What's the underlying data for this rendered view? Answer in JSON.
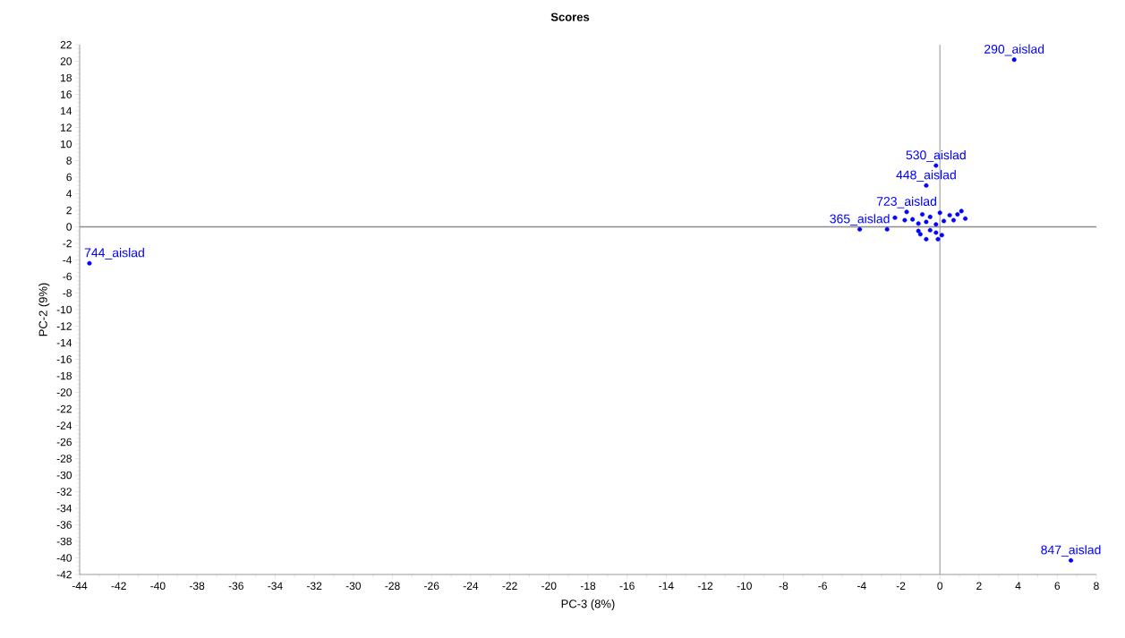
{
  "chart_data": {
    "type": "scatter",
    "title": "Scores",
    "xlabel": "PC-3 (8%)",
    "ylabel": "PC-2 (9%)",
    "x": [
      3.8,
      -0.2,
      -0.7,
      -43.5,
      6.7,
      -4.1,
      -2.7,
      -1.7,
      -2.3,
      -1.4,
      -0.9,
      -0.5,
      0,
      0.5,
      0.9,
      1.3,
      -0.7,
      0.2,
      0.7,
      -1.1,
      -0.2,
      -1.8,
      1.1,
      -1.1,
      -1.0,
      -0.7,
      -0.1,
      0.1,
      -0.5,
      -0.2
    ],
    "series": [
      {
        "color": "#0000ff",
        "values": [
          20.2,
          7.4,
          5.0,
          -4.4,
          -40.3,
          -0.3,
          -0.3,
          1.8,
          1.1,
          0.9,
          1.5,
          1.2,
          1.7,
          1.4,
          1.5,
          1.0,
          0.6,
          0.7,
          0.8,
          0.4,
          0.3,
          0.8,
          1.9,
          -0.5,
          -0.9,
          -1.5,
          -1.5,
          -1.0,
          -0.4,
          -0.7
        ]
      }
    ],
    "marker": "circle",
    "xlim": [
      -44,
      8
    ],
    "ylim": [
      -42,
      22
    ],
    "xticks": [
      -44,
      -42,
      -40,
      -38,
      -36,
      -34,
      -32,
      -30,
      -28,
      -26,
      -24,
      -22,
      -20,
      -18,
      -16,
      -14,
      -12,
      -10,
      -8,
      -6,
      -4,
      -2,
      0,
      2,
      4,
      6,
      8
    ],
    "yticks": [
      -42,
      -40,
      -38,
      -36,
      -34,
      -32,
      -30,
      -28,
      -26,
      -24,
      -22,
      -20,
      -18,
      -16,
      -14,
      -12,
      -10,
      -8,
      -6,
      -4,
      -2,
      0,
      2,
      4,
      6,
      8,
      10,
      12,
      14,
      16,
      18,
      20,
      22
    ],
    "ref_lines": [
      {
        "axis": "x",
        "value": 0,
        "color": "#aaaaaa"
      },
      {
        "axis": "y",
        "value": 0,
        "color": "#8c8c8c"
      }
    ],
    "annotations": [
      {
        "text": "290_aislad",
        "x": 3.8,
        "y": 20.2
      },
      {
        "text": "530_aislad",
        "x": -0.2,
        "y": 7.4
      },
      {
        "text": "448_aislad",
        "x": -0.7,
        "y": 5.0
      },
      {
        "text": "744_aislad",
        "x": -43.5,
        "y": -4.4
      },
      {
        "text": "847_aislad",
        "x": 6.7,
        "y": -40.3
      },
      {
        "text": "365_aislad",
        "x": -4.1,
        "y": -0.3
      },
      {
        "text": "723_aislad",
        "x": -1.7,
        "y": 1.8
      }
    ]
  }
}
